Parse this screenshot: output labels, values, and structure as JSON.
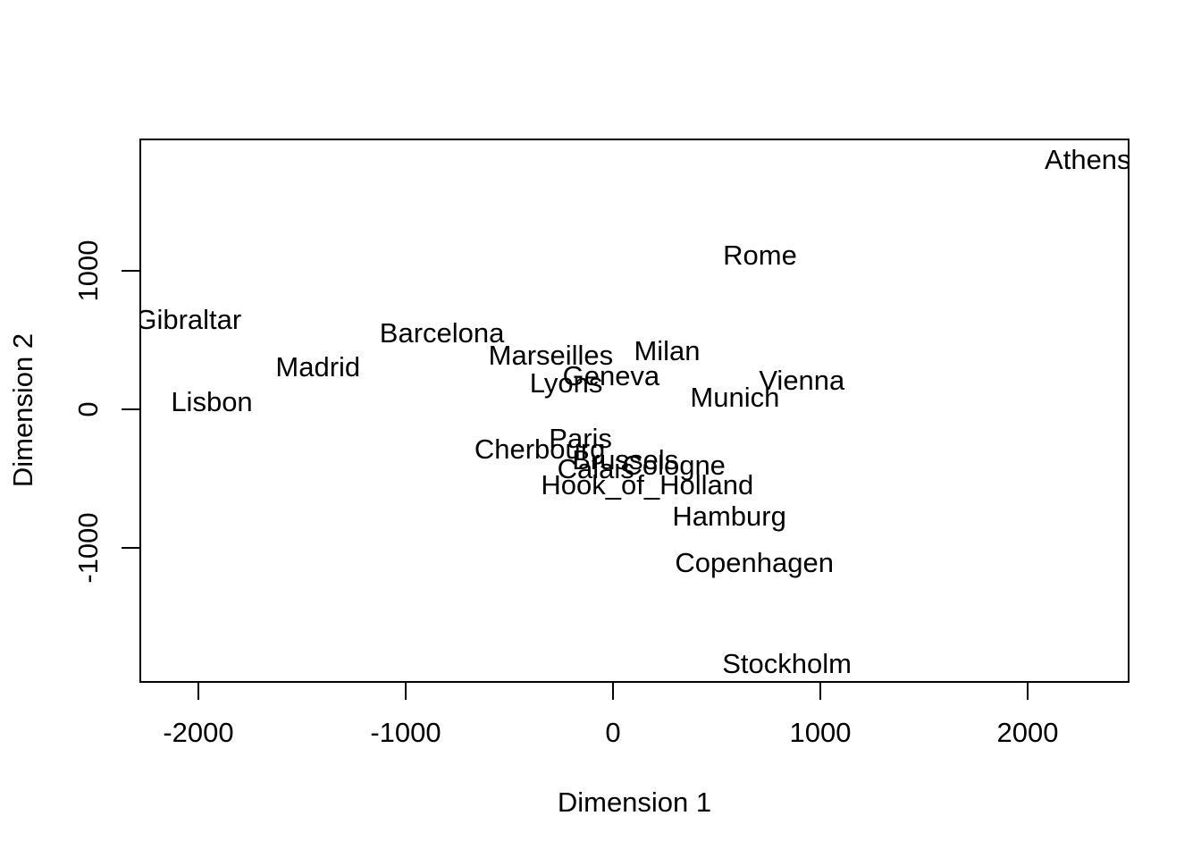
{
  "figure": {
    "background_color": "#ffffff",
    "text_color": "#000000"
  },
  "chart_data": {
    "type": "scatter",
    "subtype": "mds-text-label-plot",
    "title": "",
    "xlabel": "Dimension 1",
    "ylabel": "Dimension 2",
    "x_ticks": [
      -2000,
      -1000,
      0,
      1000,
      2000
    ],
    "y_ticks": [
      -1000,
      0,
      1000
    ],
    "xlim": [
      -2280,
      2487
    ],
    "ylim": [
      -1968,
      1948
    ],
    "grid": false,
    "legend": false,
    "marker": "none (text labels only)",
    "points": [
      {
        "label": "Athens",
        "x": 2290,
        "y": 1799
      },
      {
        "label": "Barcelona",
        "x": -825,
        "y": 547
      },
      {
        "label": "Brussels",
        "x": 59,
        "y": -367
      },
      {
        "label": "Calais",
        "x": -83,
        "y": -430
      },
      {
        "label": "Cherbourg",
        "x": -353,
        "y": -291
      },
      {
        "label": "Cologne",
        "x": 294,
        "y": -405
      },
      {
        "label": "Copenhagen",
        "x": 682,
        "y": -1109
      },
      {
        "label": "Geneva",
        "x": -9,
        "y": 240
      },
      {
        "label": "Gibraltar",
        "x": -2048,
        "y": 642
      },
      {
        "label": "Hamburg",
        "x": 561,
        "y": -773
      },
      {
        "label": "Hook_of_Holland",
        "x": 165,
        "y": -549
      },
      {
        "label": "Lisbon",
        "x": -1935,
        "y": 49
      },
      {
        "label": "Lyons",
        "x": -226,
        "y": 187
      },
      {
        "label": "Madrid",
        "x": -1423,
        "y": 306
      },
      {
        "label": "Marseilles",
        "x": -300,
        "y": 389
      },
      {
        "label": "Milan",
        "x": 261,
        "y": 417
      },
      {
        "label": "Munich",
        "x": 588,
        "y": 81
      },
      {
        "label": "Paris",
        "x": -157,
        "y": -211
      },
      {
        "label": "Rome",
        "x": 709,
        "y": 1109
      },
      {
        "label": "Stockholm",
        "x": 839,
        "y": -1837
      },
      {
        "label": "Vienna",
        "x": 911,
        "y": 206
      }
    ]
  }
}
